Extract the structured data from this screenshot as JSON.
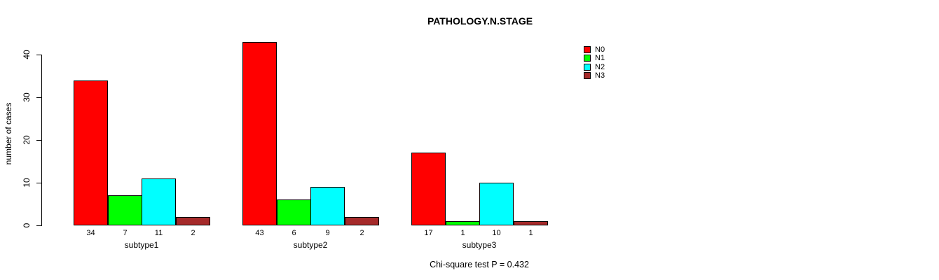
{
  "title": "PATHOLOGY.N.STAGE",
  "annotation": "Chi-square test P = 0.432",
  "chart_data": {
    "type": "bar",
    "grouped": true,
    "title": "PATHOLOGY.N.STAGE",
    "xlabel": "",
    "ylabel": "number of cases",
    "categories": [
      "subtype1",
      "subtype2",
      "subtype3"
    ],
    "series": [
      {
        "name": "N0",
        "color": "#FF0000",
        "values": [
          34,
          43,
          17
        ]
      },
      {
        "name": "N1",
        "color": "#00FF00",
        "values": [
          7,
          6,
          1
        ]
      },
      {
        "name": "N2",
        "color": "#00FFFF",
        "values": [
          11,
          9,
          10
        ]
      },
      {
        "name": "N3",
        "color": "#A52A2A",
        "values": [
          2,
          2,
          1
        ]
      }
    ],
    "bar_value_labels": true,
    "yticks": [
      0,
      10,
      20,
      30,
      40
    ],
    "ylim": [
      0,
      40
    ],
    "grid": false,
    "legend_position": "top-right",
    "annotation": "Chi-square test P = 0.432"
  }
}
